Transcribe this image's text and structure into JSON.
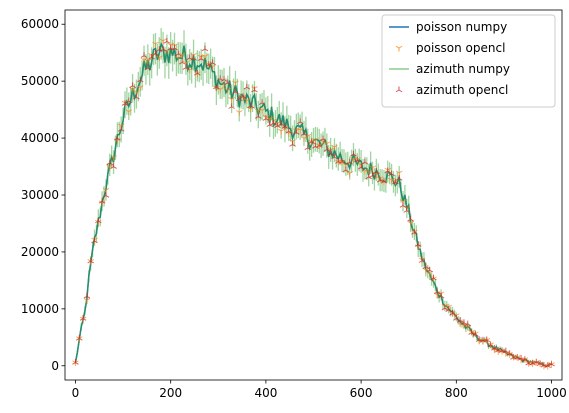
{
  "chart_data": {
    "type": "line",
    "title": "",
    "xlabel": "",
    "ylabel": "",
    "xlim": [
      -22,
      1022
    ],
    "ylim": [
      -2500,
      62500
    ],
    "x_ticks": [
      0,
      200,
      400,
      600,
      800,
      1000
    ],
    "y_ticks": [
      0,
      10000,
      20000,
      30000,
      40000,
      50000,
      60000
    ],
    "x_tick_labels": [
      "0",
      "200",
      "400",
      "600",
      "800",
      "1000"
    ],
    "y_tick_labels": [
      "0",
      "10000",
      "20000",
      "30000",
      "40000",
      "50000",
      "60000"
    ],
    "grid": false,
    "legend_position": "top-right",
    "x": [
      0,
      10,
      20,
      30,
      40,
      50,
      60,
      70,
      80,
      90,
      100,
      110,
      120,
      130,
      140,
      150,
      160,
      170,
      180,
      190,
      200,
      210,
      220,
      230,
      240,
      250,
      260,
      270,
      280,
      290,
      300,
      320,
      340,
      360,
      380,
      400,
      420,
      440,
      460,
      480,
      500,
      520,
      540,
      560,
      580,
      600,
      620,
      640,
      660,
      680,
      690,
      700,
      710,
      720,
      730,
      740,
      750,
      760,
      770,
      780,
      800,
      820,
      840,
      860,
      880,
      900,
      920,
      940,
      960,
      980,
      1000
    ],
    "noisy_y": [
      500,
      5500,
      9500,
      16500,
      22000,
      26000,
      30500,
      33500,
      37000,
      40500,
      43500,
      45500,
      47500,
      49500,
      51000,
      52500,
      53500,
      54500,
      55000,
      55000,
      55000,
      54800,
      54500,
      54200,
      54000,
      53800,
      53500,
      53000,
      52000,
      51000,
      50000,
      48500,
      47500,
      46500,
      45500,
      44500,
      43500,
      42500,
      41500,
      40500,
      39500,
      38500,
      37500,
      36500,
      35800,
      35000,
      34500,
      33800,
      33200,
      32000,
      29500,
      27000,
      24000,
      21000,
      18500,
      16500,
      14800,
      13200,
      11800,
      10500,
      8500,
      6800,
      5300,
      4200,
      3200,
      2300,
      1600,
      1000,
      600,
      250,
      100
    ],
    "series": [
      {
        "name": "poisson numpy",
        "color": "#1f77b4",
        "style": "line"
      },
      {
        "name": "poisson opencl",
        "color": "#ff7f0e",
        "style": "tri_down"
      },
      {
        "name": "azimuth numpy",
        "color": "#2ca02c",
        "style": "line"
      },
      {
        "name": "azimuth opencl",
        "color": "#d62728",
        "style": "tri_up"
      }
    ]
  }
}
